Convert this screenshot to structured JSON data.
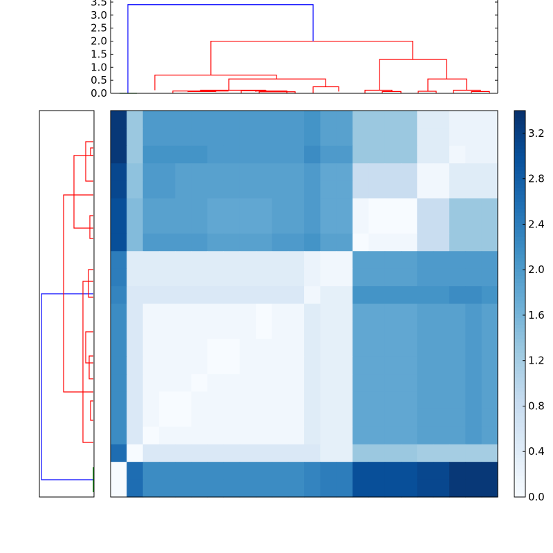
{
  "chart_data": [
    {
      "type": "dendrogram",
      "role": "top dendrogram (column clustering)",
      "title": "",
      "xlabel": "",
      "ylabel": "",
      "ylim": [
        0,
        3.5
      ],
      "yticks": [
        "0.0",
        "0.5",
        "1.0",
        "1.5",
        "2.0",
        "2.5",
        "3.0",
        "3.5"
      ],
      "root_height": 3.4,
      "major_merge_heights": [
        3.4,
        2.0,
        1.3,
        0.7,
        0.55,
        0.25,
        0.12
      ],
      "link_colors": {
        "root": "#0000ff",
        "main_cluster": "#ff0000",
        "singleton": "#008000"
      }
    },
    {
      "type": "dendrogram",
      "role": "left dendrogram (row clustering)",
      "orientation": "left",
      "title": "",
      "link_colors": {
        "root": "#0000ff",
        "main_cluster": "#ff0000",
        "singleton": "#008000"
      }
    },
    {
      "type": "heatmap",
      "title": "",
      "xlabel": "",
      "ylabel": "",
      "colormap": "Blues",
      "vmin": 0.0,
      "vmax": 3.4,
      "colorbar_ticks": [
        "0.0",
        "0.4",
        "0.8",
        "1.2",
        "1.6",
        "2.0",
        "2.4",
        "2.8",
        "3.2"
      ],
      "values": [
        [
          3.3,
          1.3,
          2.0,
          2.0,
          2.0,
          2.0,
          2.0,
          2.0,
          2.0,
          2.0,
          2.0,
          2.0,
          2.1,
          1.9,
          1.9,
          1.3,
          1.3,
          1.3,
          1.3,
          0.4,
          0.4,
          0.2,
          0.2,
          0.2
        ],
        [
          3.3,
          1.3,
          2.0,
          2.0,
          2.0,
          2.0,
          2.0,
          2.0,
          2.0,
          2.0,
          2.0,
          2.0,
          2.1,
          1.9,
          1.9,
          1.3,
          1.3,
          1.3,
          1.3,
          0.4,
          0.4,
          0.2,
          0.2,
          0.2
        ],
        [
          3.3,
          1.3,
          2.1,
          2.1,
          2.1,
          2.1,
          2.0,
          2.0,
          2.0,
          2.0,
          2.0,
          2.0,
          2.2,
          2.0,
          2.0,
          1.3,
          1.3,
          1.3,
          1.3,
          0.4,
          0.4,
          0.1,
          0.2,
          0.2
        ],
        [
          3.1,
          1.4,
          2.0,
          2.0,
          1.9,
          1.9,
          1.9,
          1.9,
          1.9,
          1.9,
          1.9,
          1.9,
          2.0,
          1.8,
          1.8,
          0.8,
          0.8,
          0.8,
          0.8,
          0.1,
          0.1,
          0.4,
          0.4,
          0.4
        ],
        [
          3.1,
          1.4,
          2.0,
          2.0,
          1.9,
          1.9,
          1.9,
          1.9,
          1.9,
          1.9,
          1.9,
          1.9,
          2.0,
          1.8,
          1.8,
          0.8,
          0.8,
          0.8,
          0.8,
          0.1,
          0.1,
          0.4,
          0.4,
          0.4
        ],
        [
          3.0,
          1.5,
          1.9,
          1.9,
          1.9,
          1.9,
          1.8,
          1.8,
          1.8,
          1.8,
          1.9,
          1.9,
          2.0,
          1.8,
          1.8,
          0.1,
          0.0,
          0.0,
          0.0,
          0.8,
          0.8,
          1.3,
          1.3,
          1.3
        ],
        [
          3.0,
          1.5,
          1.9,
          1.9,
          1.9,
          1.9,
          1.8,
          1.8,
          1.8,
          1.8,
          1.9,
          1.9,
          2.0,
          1.8,
          1.8,
          0.1,
          0.0,
          0.0,
          0.0,
          0.8,
          0.8,
          1.3,
          1.3,
          1.3
        ],
        [
          3.0,
          1.5,
          2.0,
          2.0,
          2.0,
          2.0,
          1.9,
          1.9,
          1.9,
          1.9,
          2.0,
          2.0,
          2.1,
          1.9,
          1.9,
          0.0,
          0.1,
          0.1,
          0.1,
          0.8,
          0.8,
          1.3,
          1.3,
          1.3
        ],
        [
          2.4,
          0.4,
          0.4,
          0.4,
          0.4,
          0.4,
          0.4,
          0.4,
          0.4,
          0.4,
          0.4,
          0.4,
          0.2,
          0.1,
          0.1,
          1.9,
          1.9,
          1.9,
          1.9,
          2.0,
          2.0,
          2.0,
          2.0,
          2.0
        ],
        [
          2.4,
          0.4,
          0.4,
          0.4,
          0.4,
          0.4,
          0.4,
          0.4,
          0.4,
          0.4,
          0.4,
          0.4,
          0.2,
          0.1,
          0.1,
          1.9,
          1.9,
          1.9,
          1.9,
          2.0,
          2.0,
          2.0,
          2.0,
          2.0
        ],
        [
          2.3,
          0.5,
          0.5,
          0.5,
          0.5,
          0.5,
          0.5,
          0.5,
          0.5,
          0.5,
          0.5,
          0.5,
          0.1,
          0.3,
          0.3,
          2.1,
          2.1,
          2.1,
          2.1,
          2.1,
          2.1,
          2.2,
          2.2,
          2.1
        ],
        [
          2.2,
          0.5,
          0.1,
          0.1,
          0.1,
          0.1,
          0.1,
          0.1,
          0.1,
          0.0,
          0.1,
          0.1,
          0.4,
          0.3,
          0.3,
          1.8,
          1.8,
          1.8,
          1.8,
          1.9,
          1.9,
          1.9,
          2.0,
          1.9
        ],
        [
          2.2,
          0.5,
          0.1,
          0.1,
          0.1,
          0.1,
          0.1,
          0.1,
          0.1,
          0.0,
          0.1,
          0.1,
          0.4,
          0.3,
          0.3,
          1.8,
          1.8,
          1.8,
          1.8,
          1.9,
          1.9,
          1.9,
          2.0,
          1.9
        ],
        [
          2.2,
          0.5,
          0.1,
          0.1,
          0.1,
          0.1,
          0.0,
          0.0,
          0.1,
          0.1,
          0.1,
          0.1,
          0.4,
          0.3,
          0.3,
          1.8,
          1.8,
          1.8,
          1.8,
          1.9,
          1.9,
          1.9,
          2.0,
          1.9
        ],
        [
          2.2,
          0.5,
          0.1,
          0.1,
          0.1,
          0.1,
          0.0,
          0.0,
          0.1,
          0.1,
          0.1,
          0.1,
          0.4,
          0.3,
          0.3,
          1.8,
          1.8,
          1.8,
          1.8,
          1.9,
          1.9,
          1.9,
          2.0,
          1.9
        ],
        [
          2.2,
          0.5,
          0.1,
          0.1,
          0.1,
          0.0,
          0.1,
          0.1,
          0.1,
          0.1,
          0.1,
          0.1,
          0.4,
          0.3,
          0.3,
          1.8,
          1.8,
          1.8,
          1.8,
          1.9,
          1.9,
          1.9,
          2.0,
          1.9
        ],
        [
          2.2,
          0.5,
          0.1,
          0.0,
          0.0,
          0.1,
          0.1,
          0.1,
          0.1,
          0.1,
          0.1,
          0.1,
          0.4,
          0.3,
          0.3,
          1.8,
          1.8,
          1.8,
          1.8,
          1.9,
          1.9,
          1.9,
          2.0,
          1.9
        ],
        [
          2.2,
          0.5,
          0.1,
          0.0,
          0.0,
          0.1,
          0.1,
          0.1,
          0.1,
          0.1,
          0.1,
          0.1,
          0.4,
          0.3,
          0.3,
          1.8,
          1.8,
          1.8,
          1.8,
          1.9,
          1.9,
          1.9,
          2.0,
          1.9
        ],
        [
          2.2,
          0.5,
          0.0,
          0.1,
          0.1,
          0.1,
          0.1,
          0.1,
          0.1,
          0.1,
          0.1,
          0.1,
          0.4,
          0.3,
          0.3,
          1.8,
          1.8,
          1.8,
          1.8,
          1.9,
          1.9,
          1.9,
          2.0,
          1.9
        ],
        [
          2.6,
          0.0,
          0.5,
          0.5,
          0.5,
          0.5,
          0.5,
          0.5,
          0.5,
          0.5,
          0.5,
          0.5,
          0.5,
          0.3,
          0.3,
          1.3,
          1.3,
          1.3,
          1.3,
          1.2,
          1.2,
          1.2,
          1.2,
          1.2
        ],
        [
          0.0,
          2.6,
          2.2,
          2.2,
          2.2,
          2.2,
          2.2,
          2.2,
          2.2,
          2.2,
          2.2,
          2.2,
          2.3,
          2.4,
          2.4,
          3.0,
          3.0,
          3.0,
          3.0,
          3.1,
          3.1,
          3.3,
          3.3,
          3.3
        ],
        [
          0.0,
          2.6,
          2.2,
          2.2,
          2.2,
          2.2,
          2.2,
          2.2,
          2.2,
          2.2,
          2.2,
          2.2,
          2.3,
          2.4,
          2.4,
          3.0,
          3.0,
          3.0,
          3.0,
          3.1,
          3.1,
          3.3,
          3.3,
          3.3
        ]
      ]
    }
  ]
}
